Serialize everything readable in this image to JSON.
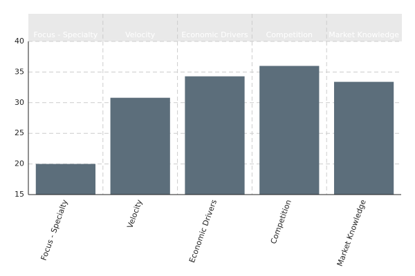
{
  "chart_data": {
    "type": "bar",
    "categories": [
      "Focus - Specialty",
      "Velocity",
      "Economic Drivers",
      "Competition",
      "Market Knowledge"
    ],
    "values": [
      20,
      30.8,
      34.3,
      36,
      33.4
    ],
    "color": "#5c6e7b",
    "ylim": [
      15,
      40
    ],
    "yticks": [
      15,
      20,
      25,
      30,
      35,
      40
    ],
    "grid": true
  }
}
